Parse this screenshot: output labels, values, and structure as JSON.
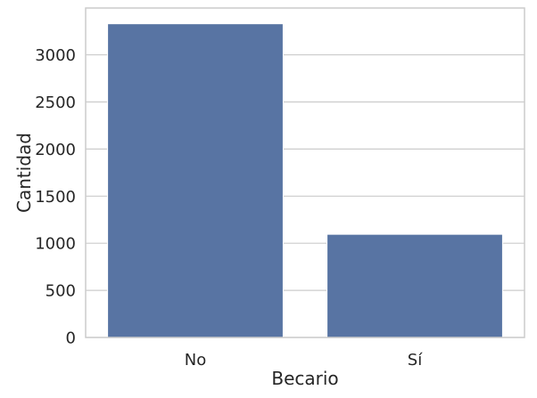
{
  "chart_data": {
    "type": "bar",
    "categories": [
      "No",
      "Sí"
    ],
    "values": [
      3330,
      1095
    ],
    "xlabel": "Becario",
    "ylabel": "Cantidad",
    "yticks": [
      0,
      500,
      1000,
      1500,
      2000,
      2500,
      3000
    ],
    "ylim": [
      0,
      3497
    ],
    "grid": true,
    "legend": "none"
  },
  "colors": {
    "bar": "#5874a3",
    "grid": "#cccccc",
    "axes": "#cccccc",
    "text": "#262626"
  }
}
